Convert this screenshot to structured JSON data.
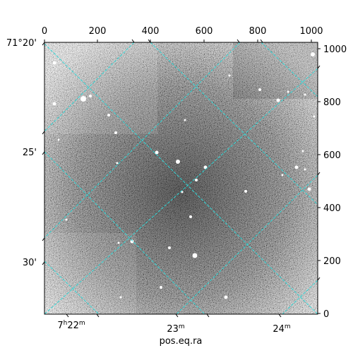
{
  "window": {
    "x_axis_label": "pos.eq.ra"
  },
  "pixel_axes": {
    "top_ticks": [
      "0",
      "200",
      "400",
      "600",
      "800",
      "1000"
    ],
    "right_ticks": [
      "0",
      "200",
      "400",
      "600",
      "800",
      "1000"
    ]
  },
  "world_axes": {
    "dec_ticks": [
      {
        "main": "71°20'"
      },
      {
        "main": "25'"
      },
      {
        "main": "30'"
      }
    ],
    "ra_ticks": [
      {
        "h": "7",
        "h_unit": "h",
        "m": "22",
        "m_unit": "m"
      },
      {
        "h": "",
        "h_unit": "",
        "m": "23",
        "m_unit": "m"
      },
      {
        "h": "",
        "h_unit": "",
        "m": "24",
        "m_unit": "m"
      }
    ]
  },
  "colors": {
    "grid": "#2fd6d6",
    "frame": "#000000",
    "background": "#ffffff"
  },
  "image": {
    "type": "astronomical-grayscale-field",
    "overlay": "coordinate-grid"
  }
}
